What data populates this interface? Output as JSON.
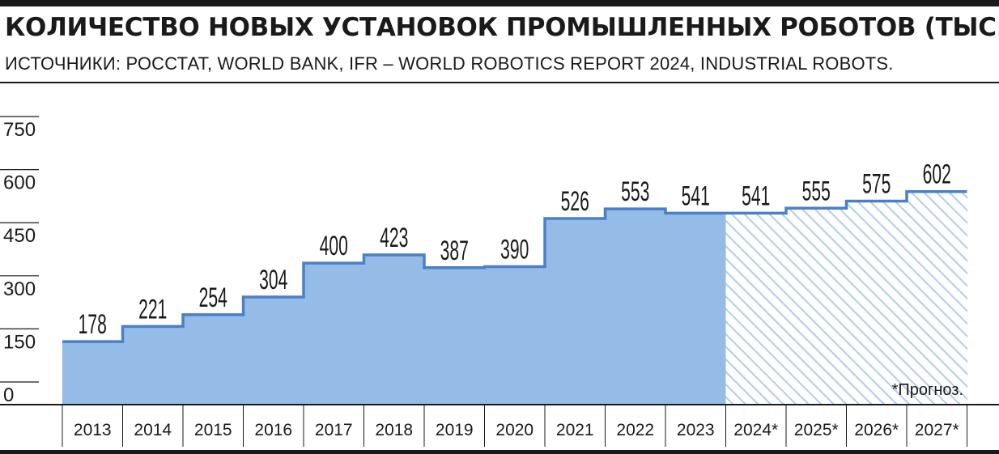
{
  "chart_data": {
    "type": "area",
    "title": "КОЛИЧЕСТВО НОВЫХ УСТАНОВОК ПРОМЫШЛЕННЫХ РОБОТОВ (ТЫС.)",
    "subtitle": "ИСТОЧНИКИ: РОССТАТ, WORLD BANK, IFR – WORLD ROBOTICS REPORT 2024, INDUSTRIAL ROBOTS.",
    "categories": [
      "2013",
      "2014",
      "2015",
      "2016",
      "2017",
      "2018",
      "2019",
      "2020",
      "2021",
      "2022",
      "2023",
      "2024*",
      "2025*",
      "2026*",
      "2027*"
    ],
    "values": [
      178,
      221,
      254,
      304,
      400,
      423,
      387,
      390,
      526,
      553,
      541,
      541,
      555,
      575,
      602
    ],
    "value_labels": [
      "178",
      "221",
      "254",
      "304",
      "400",
      "423",
      "387",
      "390",
      "526",
      "553",
      "541",
      "541",
      "555",
      "575",
      "602"
    ],
    "forecast_from_index": 11,
    "yticks": [
      "750",
      "600",
      "450",
      "300",
      "150",
      "0"
    ],
    "ylim": [
      0,
      750
    ],
    "note": "*Прогноз.",
    "colors": {
      "fill": "#94bce6",
      "line": "#4a80c8",
      "hatch": "#b2cde9",
      "text": "#1a1a1a"
    },
    "grid": false,
    "legend": "none"
  }
}
